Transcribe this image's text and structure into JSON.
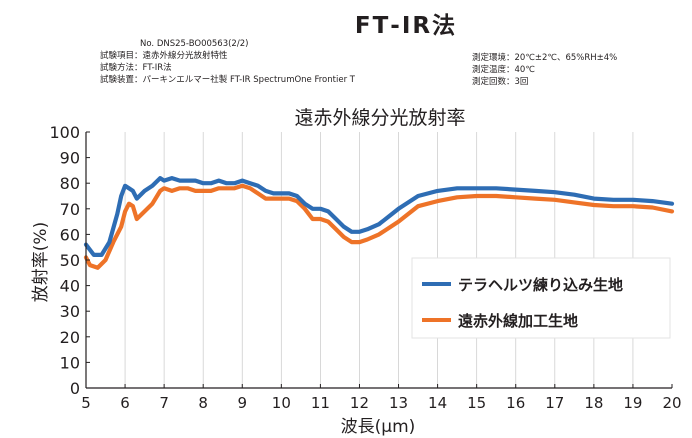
{
  "main_title": "FT‐IR法",
  "meta_left": [
    "No. DNS25-BO00563(2/2)",
    "試験項目：遠赤外線分光放射特性",
    "試験方法：FT-IR法",
    "試験装置：パーキンエルマー社製  FT-IR    SpectrumOne Frontier T"
  ],
  "meta_right": [
    "測定環境：20℃±2℃、65%RH±4%",
    "測定温度：40℃",
    "測定回数：3回"
  ],
  "colors": {
    "series1": "#2e6db4",
    "series2": "#ee7328",
    "axis": "#231f20"
  },
  "chart_data": {
    "type": "line",
    "title": "遠赤外線分光放射率",
    "xlabel": "波長(μm)",
    "ylabel": "放射率(%)",
    "xlim": [
      5,
      20
    ],
    "ylim": [
      0,
      100
    ],
    "xticks": [
      "5",
      "6",
      "7",
      "8",
      "9",
      "10",
      "11",
      "12",
      "13",
      "14",
      "15",
      "16",
      "17",
      "18",
      "19",
      "20"
    ],
    "yticks": [
      "0",
      "10",
      "20",
      "30",
      "40",
      "50",
      "60",
      "70",
      "80",
      "90",
      "100"
    ],
    "legend_position": "right-middle",
    "series": [
      {
        "name": "テラヘルツ練り込み生地",
        "x": [
          5.0,
          5.2,
          5.4,
          5.6,
          5.8,
          5.9,
          6.0,
          6.1,
          6.2,
          6.3,
          6.5,
          6.7,
          6.9,
          7.0,
          7.2,
          7.4,
          7.6,
          7.8,
          8.0,
          8.2,
          8.4,
          8.6,
          8.8,
          9.0,
          9.2,
          9.4,
          9.6,
          9.8,
          10.0,
          10.2,
          10.4,
          10.6,
          10.8,
          11.0,
          11.2,
          11.4,
          11.6,
          11.8,
          12.0,
          12.2,
          12.5,
          13.0,
          13.5,
          14.0,
          14.5,
          15.0,
          15.5,
          16.0,
          16.5,
          17.0,
          17.5,
          18.0,
          18.5,
          19.0,
          19.5,
          20.0
        ],
        "values": [
          56,
          52,
          52,
          57,
          68,
          75,
          79,
          78,
          77,
          74,
          77,
          79,
          82,
          81,
          82,
          81,
          81,
          81,
          80,
          80,
          81,
          80,
          80,
          81,
          80,
          79,
          77,
          76,
          76,
          76,
          75,
          72,
          70,
          70,
          69,
          66,
          63,
          61,
          61,
          62,
          64,
          70,
          75,
          77,
          78,
          78,
          78,
          77.5,
          77,
          76.5,
          75.5,
          74,
          73.5,
          73.5,
          73,
          72
        ]
      },
      {
        "name": "遠赤外線加工生地",
        "x": [
          5.0,
          5.1,
          5.3,
          5.5,
          5.7,
          5.9,
          6.0,
          6.1,
          6.2,
          6.3,
          6.5,
          6.7,
          6.9,
          7.0,
          7.2,
          7.4,
          7.6,
          7.8,
          8.0,
          8.2,
          8.4,
          8.6,
          8.8,
          9.0,
          9.2,
          9.4,
          9.6,
          9.8,
          10.0,
          10.2,
          10.4,
          10.6,
          10.8,
          11.0,
          11.2,
          11.4,
          11.6,
          11.8,
          12.0,
          12.2,
          12.5,
          13.0,
          13.5,
          14.0,
          14.5,
          15.0,
          15.5,
          16.0,
          16.5,
          17.0,
          17.5,
          18.0,
          18.5,
          19.0,
          19.5,
          20.0
        ],
        "values": [
          51,
          48,
          47,
          50,
          57,
          63,
          69,
          72,
          71,
          66,
          69,
          72,
          77,
          78,
          77,
          78,
          78,
          77,
          77,
          77,
          78,
          78,
          78,
          79,
          78,
          76,
          74,
          74,
          74,
          74,
          73,
          70,
          66,
          66,
          65,
          62,
          59,
          57,
          57,
          58,
          60,
          65,
          71,
          73,
          74.5,
          75,
          75,
          74.5,
          74,
          73.5,
          72.5,
          71.5,
          71,
          71,
          70.5,
          69
        ]
      }
    ]
  }
}
